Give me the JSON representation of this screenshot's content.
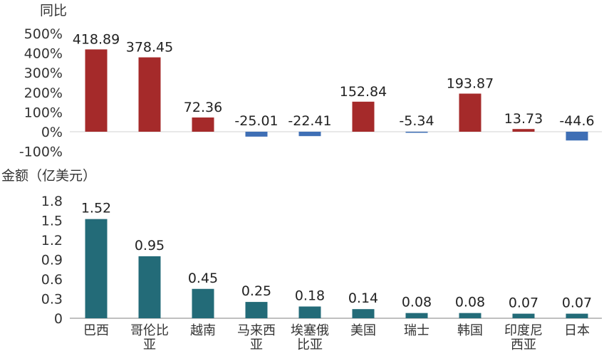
{
  "chart_data": [
    {
      "type": "bar",
      "ylabel": "同比",
      "categories": [
        "巴西",
        "哥伦比亚",
        "越南",
        "马来西亚",
        "埃塞俄比亚",
        "美国",
        "瑞士",
        "韩国",
        "印度尼西亚",
        "日本"
      ],
      "values": [
        418.89,
        378.45,
        72.36,
        -25.01,
        -22.41,
        152.84,
        -5.34,
        193.87,
        13.73,
        -44.6
      ],
      "data_labels": [
        "418.89",
        "378.45",
        "72.36",
        "-25.01",
        "-22.41",
        "152.84",
        "-5.34",
        "193.87",
        "13.73",
        "-44.6"
      ],
      "yticks": [
        "500%",
        "400%",
        "300%",
        "200%",
        "100%",
        "0%",
        "-100%"
      ],
      "ylim": [
        -100,
        500
      ],
      "grid": false,
      "colors": {
        "positive": "#a52a2a",
        "negative": "#3f6fb5"
      }
    },
    {
      "type": "bar",
      "ylabel": "金额（亿美元）",
      "categories": [
        "巴西",
        "哥伦比亚",
        "越南",
        "马来西亚",
        "埃塞俄比亚",
        "美国",
        "瑞士",
        "韩国",
        "印度尼西亚",
        "日本"
      ],
      "category_lines": [
        [
          "巴西"
        ],
        [
          "哥伦比",
          "亚"
        ],
        [
          "越南"
        ],
        [
          "马来西",
          "亚"
        ],
        [
          "埃塞俄",
          "比亚"
        ],
        [
          "美国"
        ],
        [
          "瑞士"
        ],
        [
          "韩国"
        ],
        [
          "印度尼",
          "西亚"
        ],
        [
          "日本"
        ]
      ],
      "values": [
        1.52,
        0.95,
        0.45,
        0.25,
        0.18,
        0.14,
        0.08,
        0.08,
        0.07,
        0.07
      ],
      "data_labels": [
        "1.52",
        "0.95",
        "0.45",
        "0.25",
        "0.18",
        "0.14",
        "0.08",
        "0.08",
        "0.07",
        "0.07"
      ],
      "yticks": [
        "1.8",
        "1.5",
        "1.2",
        "0.9",
        "0.6",
        "0.3",
        "0"
      ],
      "ylim": [
        0,
        1.8
      ],
      "grid": false,
      "colors": {
        "bar": "#236b78"
      }
    }
  ]
}
